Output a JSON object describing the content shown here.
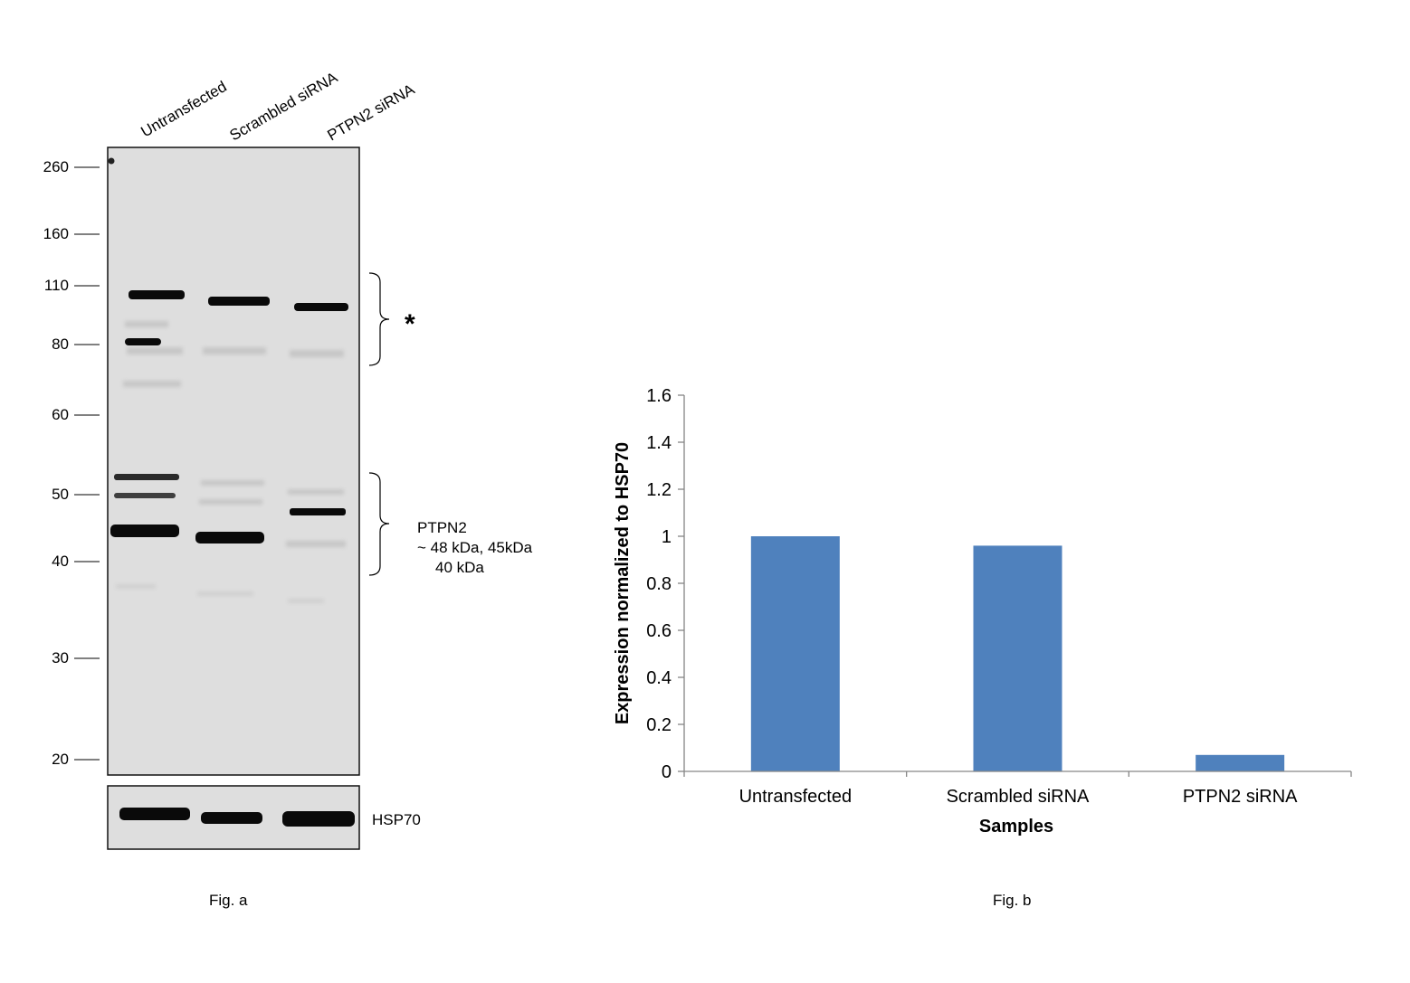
{
  "figure_a": {
    "caption": "Fig. a",
    "lanes": [
      "Untransfected",
      "Scrambled siRNA",
      "PTPN2 siRNA"
    ],
    "markers": [
      "260",
      "160",
      "110",
      "80",
      "60",
      "50",
      "40",
      "30",
      "20"
    ],
    "asterisk": "*",
    "ptpn2_label": [
      "PTPN2",
      "~ 48 kDa, 45kDa",
      "40 kDa"
    ],
    "loading_control": "HSP70"
  },
  "figure_b": {
    "caption": "Fig. b"
  },
  "chart_data": {
    "type": "bar",
    "categories": [
      "Untransfected",
      "Scrambled siRNA",
      "PTPN2 siRNA"
    ],
    "values": [
      1.0,
      0.96,
      0.07
    ],
    "xlabel": "Samples",
    "ylabel": "Expression normalized to HSP70",
    "ylim": [
      0,
      1.6
    ],
    "yticks": [
      "0",
      "0.2",
      "0.4",
      "0.6",
      "0.8",
      "1",
      "1.2",
      "1.4",
      "1.6"
    ],
    "bar_color": "#4f81bd",
    "grid": false
  }
}
